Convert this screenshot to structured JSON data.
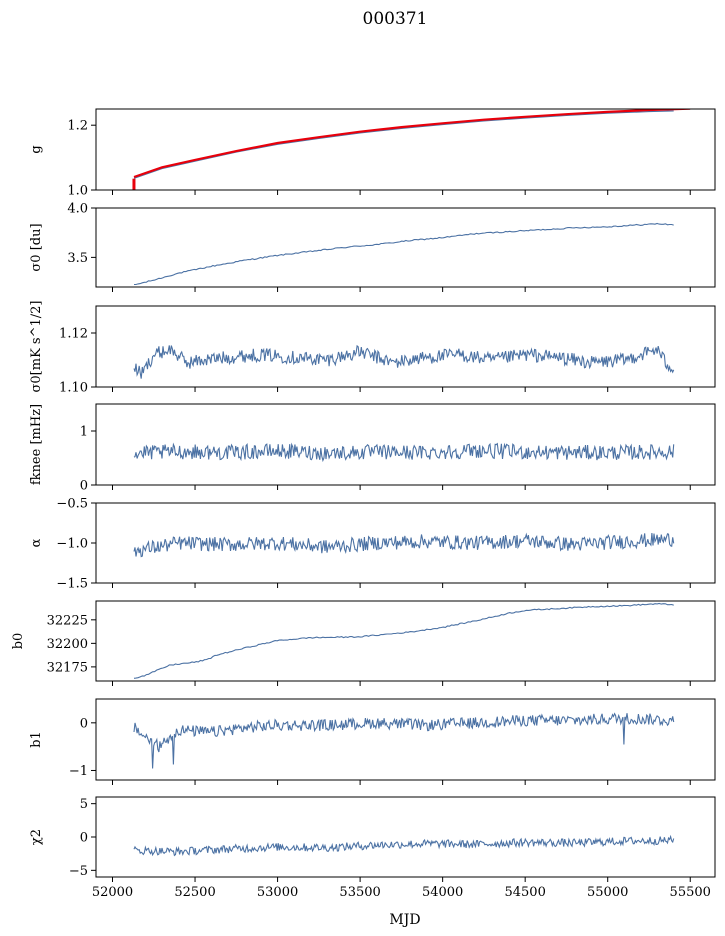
{
  "figure": {
    "title": "000371",
    "xlabel": "MJD",
    "xlim": [
      51900,
      55650
    ],
    "xticks": [
      52000,
      52500,
      53000,
      53500,
      54000,
      54500,
      55000,
      55500
    ],
    "xticklabels": [
      "52000",
      "52500",
      "53000",
      "53500",
      "54000",
      "54500",
      "55000",
      "55500"
    ]
  },
  "colors": {
    "series": "#4c72a4",
    "fit": "#e8000b"
  },
  "chart_data": [
    {
      "type": "line",
      "ylabel": "g",
      "ylim": [
        1.0,
        1.25
      ],
      "yticks": [
        1.0,
        1.2
      ],
      "yticklabels": [
        "1.0",
        "1.2"
      ],
      "series": [
        {
          "x": [
            52130,
            52300,
            52500,
            52750,
            53000,
            53250,
            53500,
            53750,
            54000,
            54250,
            54500,
            54750,
            55000,
            55250,
            55400
          ],
          "y": [
            1.036,
            1.066,
            1.089,
            1.117,
            1.141,
            1.159,
            1.176,
            1.19,
            1.202,
            1.213,
            1.222,
            1.23,
            1.237,
            1.242,
            1.244
          ]
        },
        {
          "x": [
            52130,
            52300,
            52500,
            52750,
            53000,
            53250,
            53500,
            53750,
            54000,
            54250,
            54500,
            54750,
            55000,
            55250,
            55500
          ],
          "y": [
            1.04,
            1.07,
            1.093,
            1.12,
            1.145,
            1.163,
            1.18,
            1.194,
            1.206,
            1.217,
            1.226,
            1.234,
            1.241,
            1.247,
            1.251
          ]
        }
      ]
    },
    {
      "type": "line",
      "ylabel": "σ0 [du]",
      "ylim": [
        3.2,
        4.0
      ],
      "yticks": [
        3.5,
        4.0
      ],
      "yticklabels": [
        "3.5",
        "4.0"
      ],
      "series": [
        {
          "x": [
            52130,
            52250,
            52400,
            52600,
            52800,
            53000,
            53200,
            53400,
            53600,
            53800,
            54000,
            54200,
            54400,
            54600,
            54800,
            55000,
            55200,
            55300,
            55400
          ],
          "y": [
            3.22,
            3.27,
            3.34,
            3.41,
            3.47,
            3.52,
            3.56,
            3.6,
            3.63,
            3.67,
            3.7,
            3.74,
            3.76,
            3.78,
            3.8,
            3.81,
            3.83,
            3.84,
            3.83
          ]
        }
      ]
    },
    {
      "type": "line",
      "ylabel": "σ0[mK s^1/2]",
      "ylim": [
        1.1,
        1.13
      ],
      "yticks": [
        1.1,
        1.12
      ],
      "yticklabels": [
        "1.10",
        "1.12"
      ],
      "series": [
        {
          "x": [
            52130,
            52180,
            52250,
            52350,
            52450,
            52550,
            52700,
            52900,
            53100,
            53300,
            53500,
            53700,
            53900,
            54100,
            54300,
            54500,
            54700,
            54900,
            55100,
            55200,
            55300,
            55350,
            55400
          ],
          "y": [
            1.107,
            1.105,
            1.112,
            1.114,
            1.109,
            1.11,
            1.111,
            1.112,
            1.111,
            1.11,
            1.113,
            1.109,
            1.111,
            1.112,
            1.11,
            1.112,
            1.111,
            1.109,
            1.11,
            1.112,
            1.114,
            1.109,
            1.107
          ]
        }
      ]
    },
    {
      "type": "line",
      "ylabel": "fknee [mHz]",
      "ylim": [
        0.0,
        1.5
      ],
      "yticks": [
        0,
        1
      ],
      "yticklabels": [
        "0",
        "1"
      ],
      "series": [
        {
          "x": [
            52130,
            52400,
            52700,
            53000,
            53300,
            53600,
            53900,
            54200,
            54500,
            54800,
            55100,
            55400
          ],
          "y": [
            0.58,
            0.62,
            0.6,
            0.63,
            0.59,
            0.61,
            0.6,
            0.64,
            0.61,
            0.6,
            0.6,
            0.62
          ]
        }
      ]
    },
    {
      "type": "line",
      "ylabel": "α",
      "ylim": [
        -1.5,
        -0.5
      ],
      "yticks": [
        -1.5,
        -1.0,
        -0.5
      ],
      "yticklabels": [
        "−1.5",
        "−1.0",
        "−0.5"
      ],
      "series": [
        {
          "x": [
            52130,
            52400,
            52700,
            53000,
            53300,
            53600,
            53900,
            54200,
            54500,
            54800,
            55100,
            55400
          ],
          "y": [
            -1.1,
            -1.0,
            -1.02,
            -1.0,
            -1.05,
            -1.0,
            -0.98,
            -1.0,
            -0.97,
            -1.02,
            -0.98,
            -0.95
          ]
        }
      ]
    },
    {
      "type": "line",
      "ylabel": "b0",
      "ylim": [
        32160,
        32245
      ],
      "yticks": [
        32175,
        32200,
        32225
      ],
      "yticklabels": [
        "32175",
        "32200",
        "32225"
      ],
      "series": [
        {
          "x": [
            52130,
            52200,
            52280,
            52350,
            52500,
            52580,
            52620,
            52800,
            53000,
            53200,
            53500,
            53800,
            54000,
            54200,
            54400,
            54500,
            54700,
            54900,
            55100,
            55300,
            55400
          ],
          "y": [
            32163,
            32166,
            32172,
            32177,
            32180,
            32183,
            32187,
            32195,
            32203,
            32206,
            32207,
            32212,
            32217,
            32224,
            32232,
            32235,
            32237,
            32239,
            32240,
            32242,
            32241
          ]
        }
      ]
    },
    {
      "type": "line",
      "ylabel": "b1",
      "ylim": [
        -1.2,
        0.5
      ],
      "yticks": [
        -1,
        0
      ],
      "yticklabels": [
        "−1",
        "0"
      ],
      "series": [
        {
          "x": [
            52130,
            52200,
            52280,
            52400,
            52600,
            52800,
            53000,
            53300,
            53600,
            53900,
            54200,
            54500,
            54800,
            55100,
            55400
          ],
          "y": [
            -0.1,
            -0.3,
            -0.5,
            -0.15,
            -0.2,
            -0.1,
            -0.05,
            -0.05,
            0.0,
            -0.05,
            0.0,
            0.05,
            0.05,
            0.1,
            0.05
          ]
        }
      ]
    },
    {
      "type": "line",
      "ylabel": "χ2",
      "ylim": [
        -6,
        6
      ],
      "yticks": [
        -5,
        0,
        5
      ],
      "yticklabels": [
        "−5",
        "0",
        "5"
      ],
      "series": [
        {
          "x": [
            52130,
            52400,
            52700,
            53000,
            53300,
            53600,
            53900,
            54200,
            54500,
            54800,
            55100,
            55400
          ],
          "y": [
            -2.0,
            -2.2,
            -1.8,
            -1.5,
            -1.6,
            -1.2,
            -1.0,
            -1.1,
            -0.8,
            -0.9,
            -0.6,
            -0.5
          ]
        }
      ]
    }
  ]
}
